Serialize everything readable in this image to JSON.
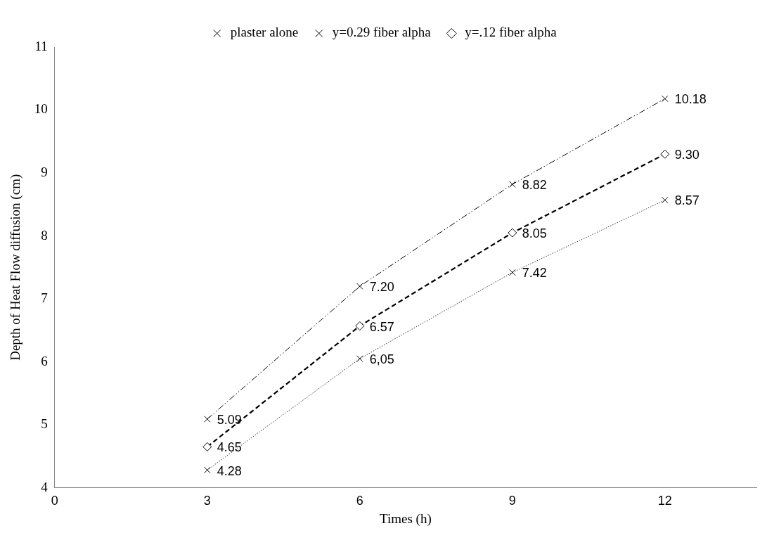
{
  "chart_data": {
    "type": "line",
    "xlabel": "Times (h)",
    "ylabel": "Depth of Heat Flow diffusion (cm)",
    "x": [
      3,
      6,
      9,
      12
    ],
    "series": [
      {
        "name": "plaster alone",
        "color": "#000000",
        "values": [
          5.09,
          7.2,
          8.82,
          10.18
        ],
        "value_labels": [
          "5.09",
          "7.20",
          "8.82",
          "10.18"
        ],
        "marker": "cross",
        "line_style": "dashed"
      },
      {
        "name": "y=0.29 fiber alpha",
        "color": "#000000",
        "values": [
          4.28,
          6.05,
          7.42,
          8.57
        ],
        "value_labels": [
          "4.28",
          "6,05",
          "7.42",
          "8.57"
        ],
        "marker": "cross",
        "line_style": "dotted"
      },
      {
        "name": "y=.12 fiber alpha",
        "color": "#000000",
        "values": [
          4.65,
          6.57,
          8.05,
          9.3
        ],
        "value_labels": [
          "4.65",
          "6.57",
          "8.05",
          "9.30"
        ],
        "marker": "diamond",
        "line_style": "dashed"
      }
    ],
    "xlim": [
      0,
      13.8
    ],
    "xticks": [
      0,
      3,
      6,
      9,
      12
    ],
    "ylim": [
      4,
      11
    ],
    "yticks": [
      4,
      5,
      6,
      7,
      8,
      9,
      10,
      11
    ],
    "grid": false,
    "legend": "top"
  }
}
